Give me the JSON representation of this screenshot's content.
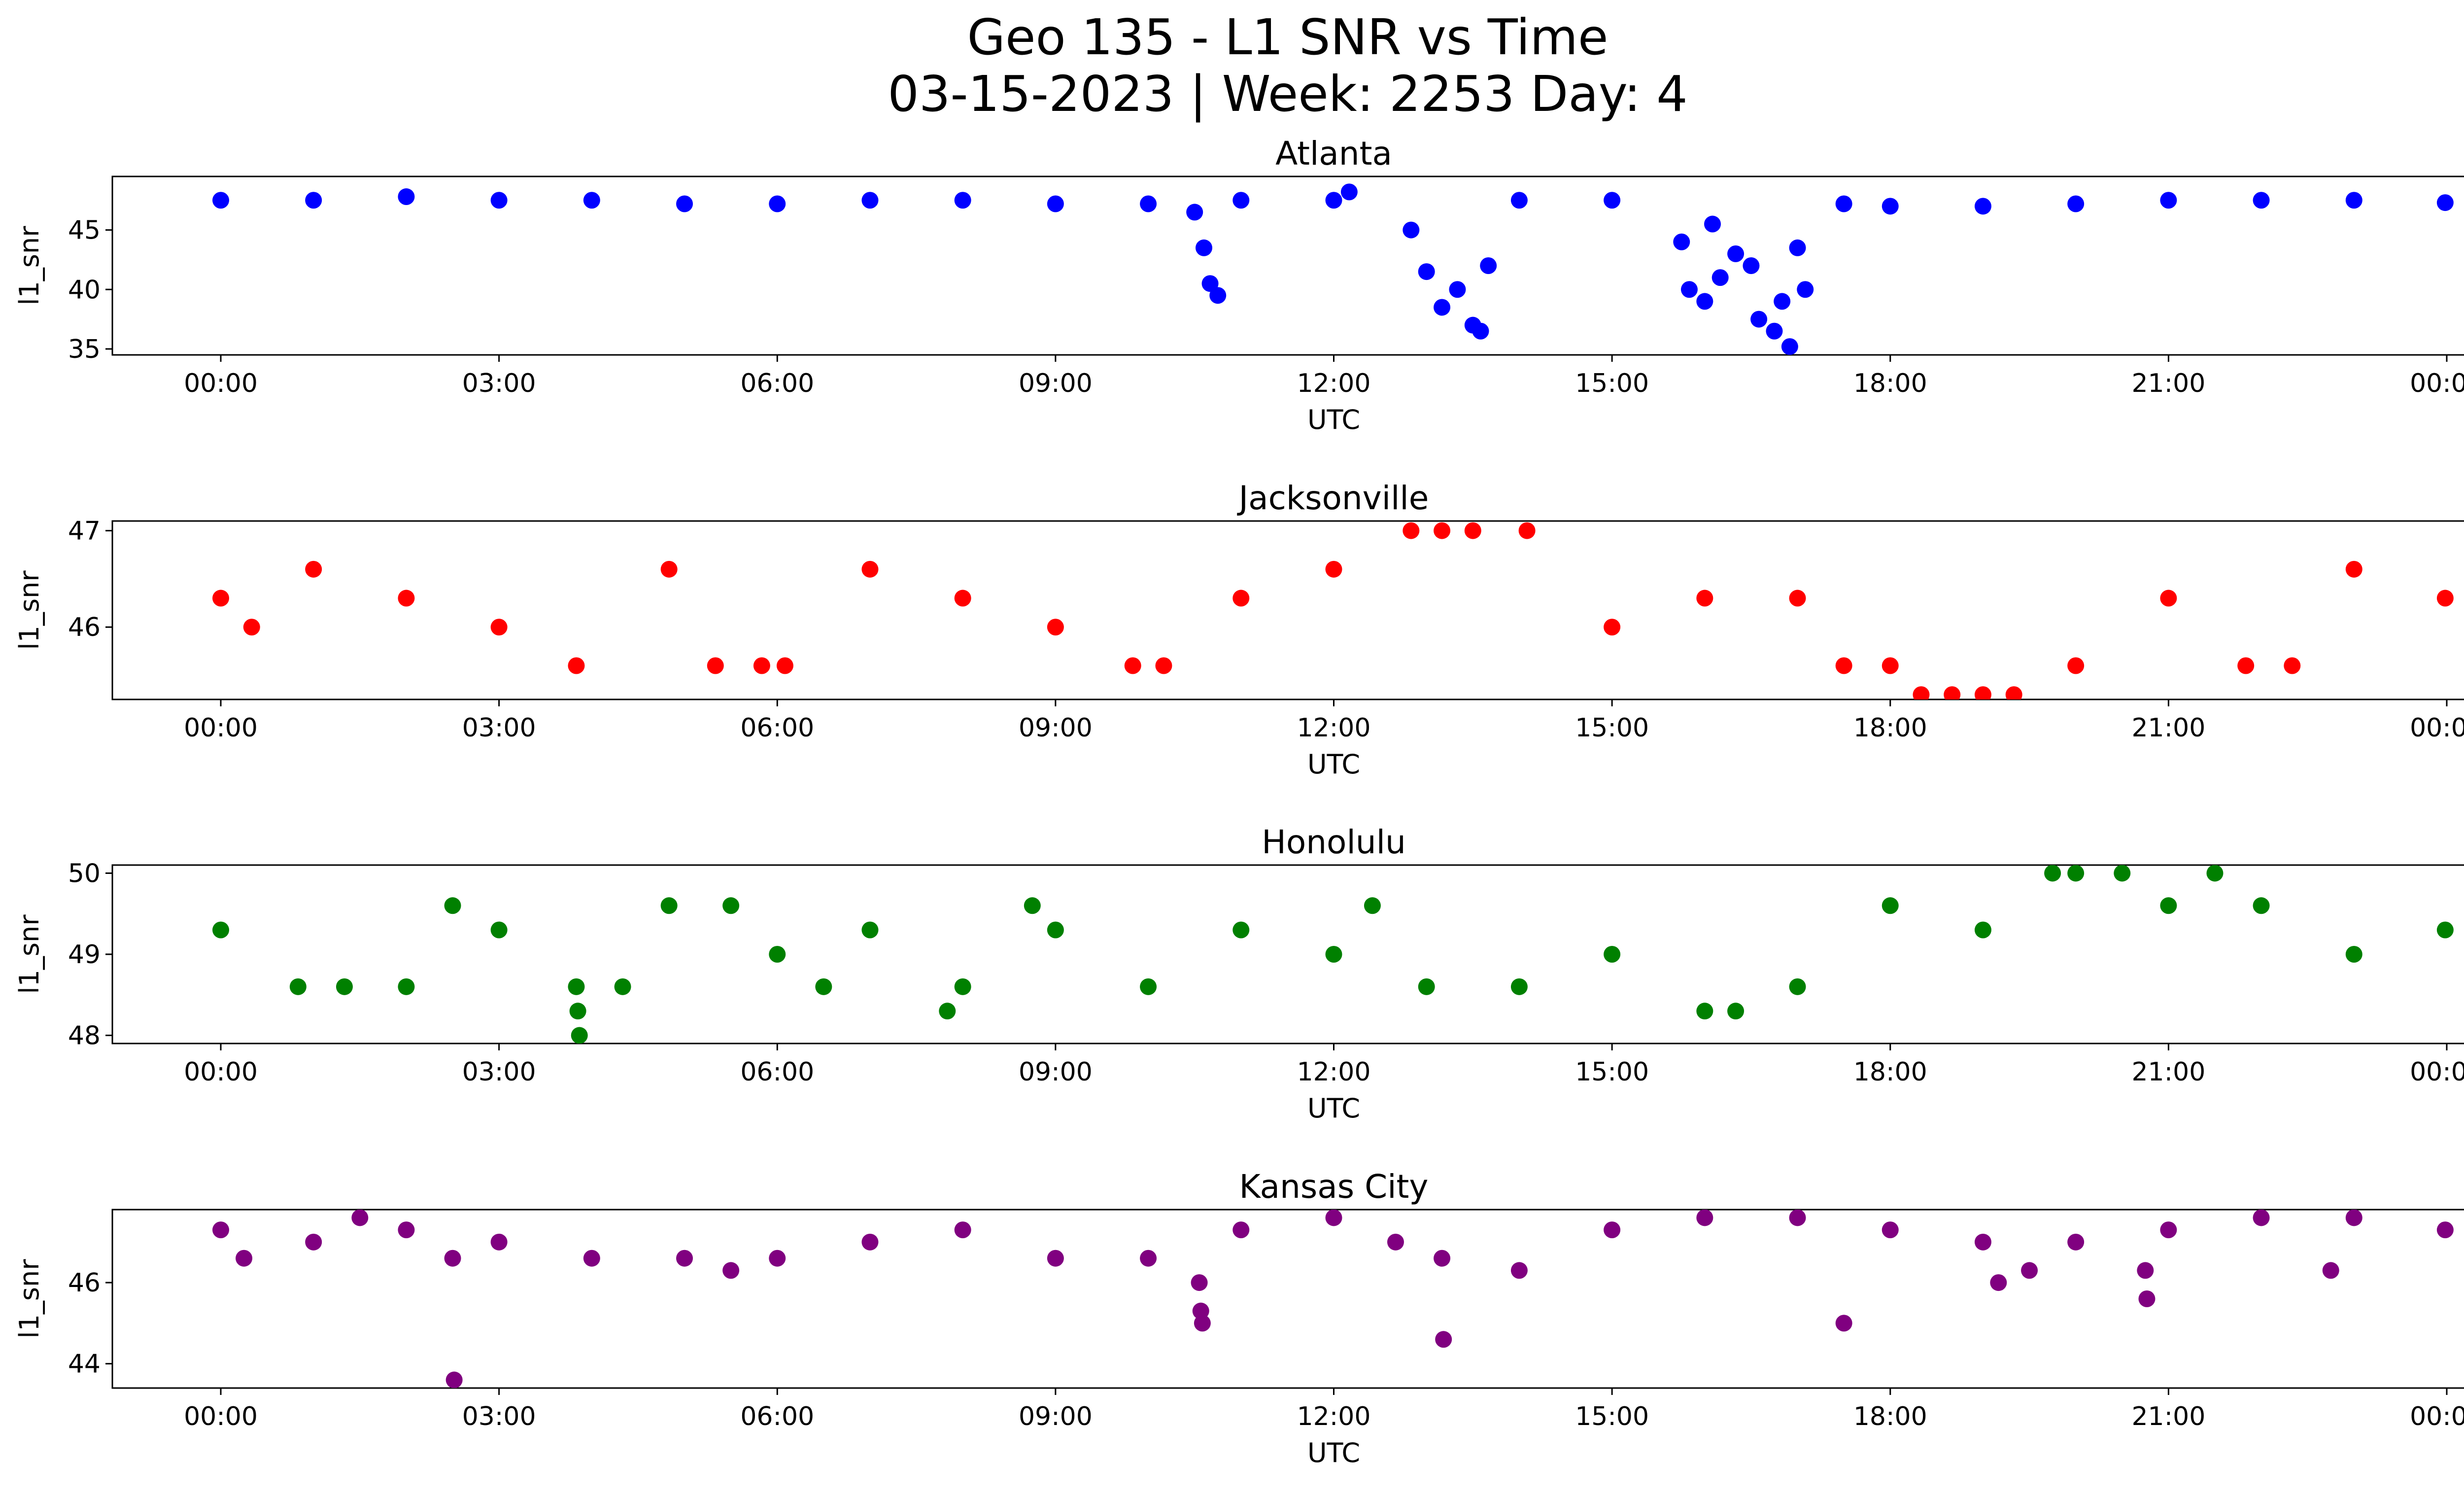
{
  "figure": {
    "title_line1": "Geo 135 - L1 SNR vs Time",
    "title_line2": "03-15-2023 | Week: 2253 Day: 4"
  },
  "chart_data": [
    {
      "type": "scatter",
      "title": "Atlanta",
      "xlabel": "UTC",
      "ylabel": "l1_snr",
      "color": "#0000ff",
      "xlim": [
        "00:00",
        "24:00"
      ],
      "ylim": [
        34.5,
        49.5
      ],
      "xticks": [
        "00:00",
        "03:00",
        "06:00",
        "09:00",
        "12:00",
        "15:00",
        "18:00",
        "21:00",
        "00:00"
      ],
      "yticks": [
        35,
        40,
        45
      ],
      "series": [
        {
          "x": [
            "00:00",
            "01:00",
            "02:00",
            "03:00",
            "04:00",
            "05:00",
            "06:00",
            "07:00",
            "08:00",
            "09:00",
            "10:00",
            "10:30",
            "10:36",
            "10:40",
            "10:45",
            "11:00",
            "12:00",
            "12:10",
            "12:50",
            "13:00",
            "13:10",
            "13:20",
            "13:30",
            "13:35",
            "13:40",
            "14:00",
            "15:00",
            "15:45",
            "15:50",
            "16:00",
            "16:05",
            "16:10",
            "16:20",
            "16:30",
            "16:35",
            "16:45",
            "16:50",
            "16:55",
            "17:00",
            "17:05",
            "17:30",
            "18:00",
            "19:00",
            "20:00",
            "21:00",
            "22:00",
            "23:00",
            "23:59"
          ],
          "y": [
            47.5,
            47.5,
            47.8,
            47.5,
            47.5,
            47.2,
            47.2,
            47.5,
            47.5,
            47.2,
            47.2,
            46.5,
            43.5,
            40.5,
            39.5,
            47.5,
            47.5,
            48.2,
            45.0,
            41.5,
            38.5,
            40.0,
            37.0,
            36.5,
            42.0,
            47.5,
            47.5,
            44.0,
            40.0,
            39.0,
            45.5,
            41.0,
            43.0,
            42.0,
            37.5,
            36.5,
            39.0,
            35.2,
            43.5,
            40.0,
            47.2,
            47.0,
            47.0,
            47.2,
            47.5,
            47.5,
            47.5,
            47.3
          ]
        }
      ]
    },
    {
      "type": "scatter",
      "title": "Jacksonville",
      "xlabel": "UTC",
      "ylabel": "l1_snr",
      "color": "#ff0000",
      "xlim": [
        "00:00",
        "24:00"
      ],
      "ylim": [
        45.25,
        47.1
      ],
      "xticks": [
        "00:00",
        "03:00",
        "06:00",
        "09:00",
        "12:00",
        "15:00",
        "18:00",
        "21:00",
        "00:00"
      ],
      "yticks": [
        46,
        47
      ],
      "series": [
        {
          "x": [
            "00:00",
            "00:20",
            "01:00",
            "02:00",
            "03:00",
            "03:50",
            "04:50",
            "05:20",
            "05:50",
            "06:05",
            "07:00",
            "08:00",
            "09:00",
            "09:50",
            "10:10",
            "11:00",
            "12:00",
            "12:50",
            "13:10",
            "13:30",
            "14:05",
            "15:00",
            "16:00",
            "17:00",
            "17:30",
            "18:00",
            "18:20",
            "18:40",
            "19:00",
            "19:20",
            "20:00",
            "21:00",
            "21:50",
            "22:20",
            "23:00",
            "23:59"
          ],
          "y": [
            46.3,
            46.0,
            46.6,
            46.3,
            46.0,
            45.6,
            46.6,
            45.6,
            45.6,
            45.6,
            46.6,
            46.3,
            46.0,
            45.6,
            45.6,
            46.3,
            46.6,
            47.0,
            47.0,
            47.0,
            47.0,
            46.0,
            46.3,
            46.3,
            45.6,
            45.6,
            45.3,
            45.3,
            45.3,
            45.3,
            45.6,
            46.3,
            45.6,
            45.6,
            46.6,
            46.3
          ]
        }
      ]
    },
    {
      "type": "scatter",
      "title": "Honolulu",
      "xlabel": "UTC",
      "ylabel": "l1_snr",
      "color": "#008000",
      "xlim": [
        "00:00",
        "24:00"
      ],
      "ylim": [
        47.9,
        50.1
      ],
      "xticks": [
        "00:00",
        "03:00",
        "06:00",
        "09:00",
        "12:00",
        "15:00",
        "18:00",
        "21:00",
        "00:00"
      ],
      "yticks": [
        48,
        49,
        50
      ],
      "series": [
        {
          "x": [
            "00:00",
            "00:50",
            "01:20",
            "02:00",
            "02:30",
            "03:00",
            "03:50",
            "03:51",
            "03:52",
            "04:20",
            "04:50",
            "05:30",
            "06:00",
            "06:30",
            "07:00",
            "07:50",
            "08:00",
            "08:45",
            "09:00",
            "10:00",
            "11:00",
            "12:00",
            "12:25",
            "13:00",
            "14:00",
            "15:00",
            "16:00",
            "16:20",
            "17:00",
            "18:00",
            "19:00",
            "19:45",
            "20:00",
            "20:30",
            "21:00",
            "21:30",
            "22:00",
            "23:00",
            "23:59"
          ],
          "y": [
            49.3,
            48.6,
            48.6,
            48.6,
            49.6,
            49.3,
            48.6,
            48.3,
            48.0,
            48.6,
            49.6,
            49.6,
            49.0,
            48.6,
            49.3,
            48.3,
            48.6,
            49.6,
            49.3,
            48.6,
            49.3,
            49.0,
            49.6,
            48.6,
            48.6,
            49.0,
            48.3,
            48.3,
            48.6,
            49.6,
            49.3,
            50.0,
            50.0,
            50.0,
            49.6,
            50.0,
            49.6,
            49.0,
            49.3
          ]
        }
      ]
    },
    {
      "type": "scatter",
      "title": "Kansas City",
      "xlabel": "UTC",
      "ylabel": "l1_snr",
      "color": "#800080",
      "xlim": [
        "00:00",
        "24:00"
      ],
      "ylim": [
        43.4,
        47.8
      ],
      "xticks": [
        "00:00",
        "03:00",
        "06:00",
        "09:00",
        "12:00",
        "15:00",
        "18:00",
        "21:00",
        "00:00"
      ],
      "yticks": [
        44,
        46
      ],
      "series": [
        {
          "x": [
            "00:00",
            "00:15",
            "01:00",
            "01:30",
            "02:00",
            "02:30",
            "02:31",
            "03:00",
            "04:00",
            "05:00",
            "05:30",
            "06:00",
            "07:00",
            "08:00",
            "09:00",
            "10:00",
            "10:33",
            "10:34",
            "10:35",
            "11:00",
            "12:00",
            "12:40",
            "13:10",
            "13:11",
            "14:00",
            "15:00",
            "16:00",
            "17:00",
            "17:30",
            "18:00",
            "19:00",
            "19:10",
            "19:30",
            "20:00",
            "20:45",
            "20:46",
            "21:00",
            "22:00",
            "22:45",
            "23:00",
            "23:59"
          ],
          "y": [
            47.3,
            46.6,
            47.0,
            47.6,
            47.3,
            46.6,
            43.6,
            47.0,
            46.6,
            46.6,
            46.3,
            46.6,
            47.0,
            47.3,
            46.6,
            46.6,
            46.0,
            45.3,
            45.0,
            47.3,
            47.6,
            47.0,
            46.6,
            44.6,
            46.3,
            47.3,
            47.6,
            47.6,
            45.0,
            47.3,
            47.0,
            46.0,
            46.3,
            47.0,
            46.3,
            45.6,
            47.3,
            47.6,
            46.3,
            47.6,
            47.3
          ]
        }
      ]
    }
  ]
}
